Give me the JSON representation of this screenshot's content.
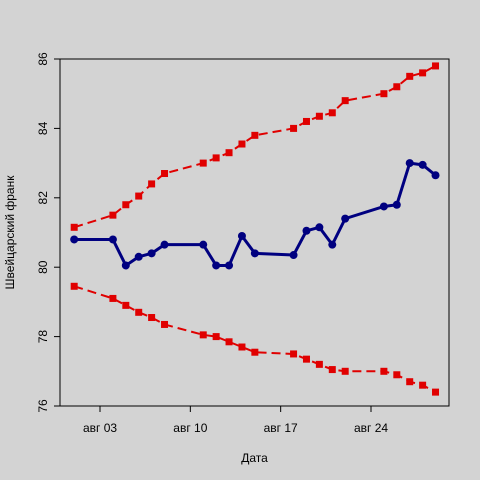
{
  "chart_data": {
    "type": "line",
    "xlabel": "Дата",
    "ylabel": "Швейцарский франк",
    "ylim": [
      76,
      86
    ],
    "yticks": [
      76,
      78,
      80,
      82,
      84,
      86
    ],
    "x_ticks": [
      {
        "day": 3,
        "label": "авг 03"
      },
      {
        "day": 10,
        "label": "авг 10"
      },
      {
        "day": 17,
        "label": "авг 17"
      },
      {
        "day": 24,
        "label": "авг 24"
      }
    ],
    "x_days": [
      1,
      4,
      5,
      6,
      7,
      8,
      11,
      12,
      13,
      14,
      15,
      18,
      19,
      20,
      21,
      22,
      25,
      26,
      27,
      28,
      29
    ],
    "grid": false,
    "legend": "none",
    "series": [
      {
        "color": "#000080",
        "style": "solid",
        "values": [
          80.8,
          80.8,
          80.05,
          80.3,
          80.4,
          80.65,
          80.65,
          80.05,
          80.05,
          80.9,
          80.4,
          80.35,
          81.05,
          81.15,
          80.65,
          81.4,
          81.75,
          81.8,
          83.0,
          82.95,
          82.65
        ]
      },
      {
        "color": "#e00000",
        "style": "dashed",
        "values": [
          81.15,
          81.5,
          81.8,
          82.05,
          82.4,
          82.7,
          83.0,
          83.15,
          83.3,
          83.55,
          83.8,
          84.0,
          84.2,
          84.35,
          84.45,
          84.8,
          85.0,
          85.2,
          85.5,
          85.6,
          85.8
        ]
      },
      {
        "color": "#e00000",
        "style": "dashed",
        "values": [
          79.45,
          79.1,
          78.9,
          78.7,
          78.55,
          78.35,
          78.05,
          78.0,
          77.85,
          77.7,
          77.55,
          77.5,
          77.35,
          77.2,
          77.05,
          77.0,
          77.0,
          76.9,
          76.7,
          76.6,
          76.4
        ]
      }
    ]
  }
}
